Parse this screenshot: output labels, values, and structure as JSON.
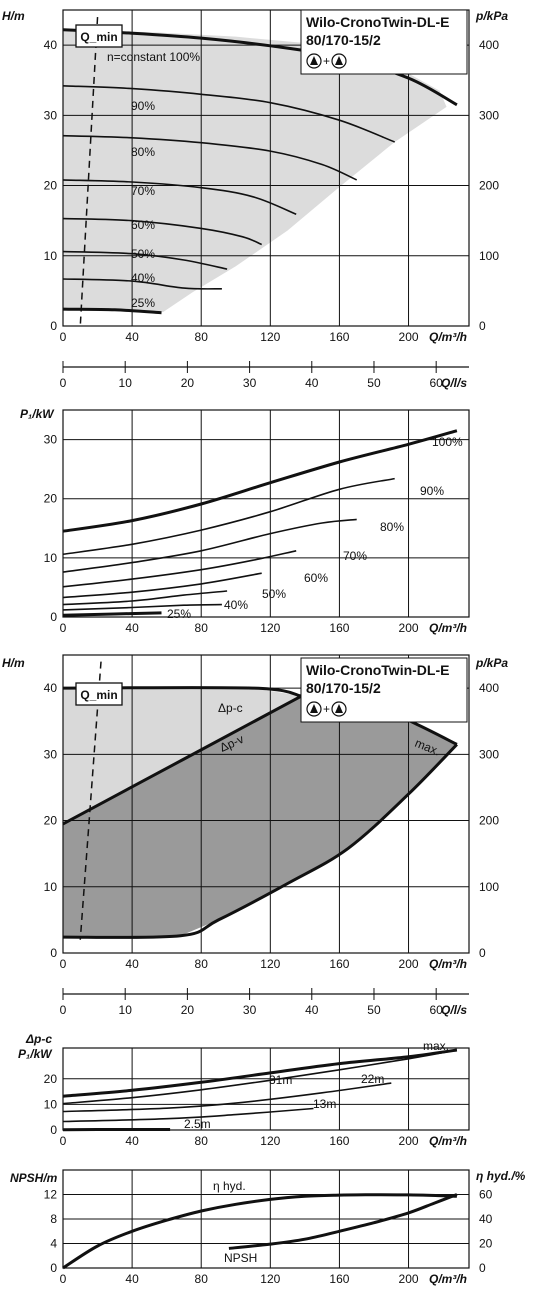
{
  "chart_data": [
    {
      "id": "hq-speed",
      "type": "line",
      "title": "Wilo-CronoTwin-DL-E",
      "subtitle": "80/170-15/2",
      "symbol_note": "+",
      "xlabel": "Q/m³/h",
      "ylabel": "H/m",
      "y2label": "p/kPa",
      "xlim": [
        0,
        235
      ],
      "ylim": [
        0,
        45
      ],
      "x_ticks": [
        0,
        40,
        80,
        120,
        160,
        200
      ],
      "y_ticks": [
        0,
        10,
        20,
        30,
        40
      ],
      "y2_ticks": [
        0,
        100,
        200,
        300,
        400
      ],
      "grid": true,
      "qmin_label": "Q_min",
      "qmin_line": [
        [
          20,
          44
        ],
        [
          10,
          0
        ]
      ],
      "operating_area": [
        [
          58,
          2
        ],
        [
          75,
          4.8
        ],
        [
          100,
          8.5
        ],
        [
          130,
          13.6
        ],
        [
          160,
          19.8
        ],
        [
          192,
          26.2
        ],
        [
          222,
          31.2
        ],
        [
          218,
          33.5
        ],
        [
          185,
          38
        ],
        [
          140,
          40.3
        ],
        [
          100,
          41.2
        ],
        [
          55,
          41.8
        ],
        [
          0,
          42.2
        ],
        [
          0,
          2.2
        ]
      ],
      "series": [
        {
          "name": "n=constant 100%",
          "thick": true,
          "points": [
            [
              0,
              42.2
            ],
            [
              40,
              41.7
            ],
            [
              80,
              41
            ],
            [
              120,
              39.9
            ],
            [
              160,
              38.3
            ],
            [
              200,
              35.3
            ],
            [
              228,
              31.5
            ]
          ]
        },
        {
          "name": "90%",
          "points": [
            [
              0,
              34.2
            ],
            [
              40,
              33.8
            ],
            [
              80,
              33
            ],
            [
              120,
              31.8
            ],
            [
              160,
              29.3
            ],
            [
              192,
              26.2
            ]
          ]
        },
        {
          "name": "80%",
          "points": [
            [
              0,
              27.1
            ],
            [
              40,
              26.8
            ],
            [
              80,
              26.1
            ],
            [
              120,
              24.9
            ],
            [
              150,
              23
            ],
            [
              170,
              20.8
            ]
          ]
        },
        {
          "name": "70%",
          "points": [
            [
              0,
              20.8
            ],
            [
              40,
              20.5
            ],
            [
              80,
              19.7
            ],
            [
              110,
              18.4
            ],
            [
              135,
              15.9
            ]
          ]
        },
        {
          "name": "60%",
          "points": [
            [
              0,
              15.3
            ],
            [
              40,
              15
            ],
            [
              80,
              13.9
            ],
            [
              104,
              12.7
            ],
            [
              115,
              11.6
            ]
          ]
        },
        {
          "name": "50%",
          "points": [
            [
              0,
              10.6
            ],
            [
              40,
              10.3
            ],
            [
              70,
              9.4
            ],
            [
              95,
              8.1
            ]
          ]
        },
        {
          "name": "40%",
          "points": [
            [
              0,
              6.7
            ],
            [
              40,
              6.4
            ],
            [
              70,
              5.4
            ],
            [
              92,
              5.3
            ]
          ]
        },
        {
          "name": "25%",
          "thick": true,
          "points": [
            [
              0,
              2.4
            ],
            [
              30,
              2.3
            ],
            [
              57,
              1.9
            ]
          ]
        }
      ]
    },
    {
      "id": "q-ls-axis",
      "type": "axis",
      "xlabel": "Q/l/s",
      "x_ticks": [
        0,
        10,
        20,
        30,
        40,
        50,
        60
      ]
    },
    {
      "id": "p1-speed",
      "type": "line",
      "ylabel": "P₁/kW",
      "xlabel": "Q/m³/h",
      "xlim": [
        0,
        235
      ],
      "ylim": [
        0,
        35
      ],
      "x_ticks": [
        0,
        40,
        80,
        120,
        160,
        200
      ],
      "y_ticks": [
        0,
        10,
        20,
        30
      ],
      "grid": true,
      "series": [
        {
          "name": "100%",
          "thick": true,
          "points": [
            [
              0,
              14.5
            ],
            [
              40,
              16.3
            ],
            [
              80,
              19.1
            ],
            [
              120,
              22.7
            ],
            [
              160,
              26.2
            ],
            [
              200,
              29.2
            ],
            [
              228,
              31.5
            ]
          ]
        },
        {
          "name": "90%",
          "points": [
            [
              0,
              10.6
            ],
            [
              40,
              12.3
            ],
            [
              80,
              14.7
            ],
            [
              120,
              17.8
            ],
            [
              160,
              21.6
            ],
            [
              192,
              23.4
            ]
          ]
        },
        {
          "name": "80%",
          "points": [
            [
              0,
              7.6
            ],
            [
              40,
              9.2
            ],
            [
              80,
              11.2
            ],
            [
              120,
              14.1
            ],
            [
              150,
              15.9
            ],
            [
              170,
              16.5
            ]
          ]
        },
        {
          "name": "70%",
          "points": [
            [
              0,
              5.1
            ],
            [
              40,
              6.4
            ],
            [
              80,
              8
            ],
            [
              110,
              9.6
            ],
            [
              135,
              11.2
            ]
          ]
        },
        {
          "name": "60%",
          "points": [
            [
              0,
              3.3
            ],
            [
              40,
              4.2
            ],
            [
              80,
              5.6
            ],
            [
              115,
              7.4
            ]
          ]
        },
        {
          "name": "50%",
          "points": [
            [
              0,
              2.1
            ],
            [
              40,
              2.7
            ],
            [
              70,
              3.7
            ],
            [
              95,
              4.4
            ]
          ]
        },
        {
          "name": "40%",
          "points": [
            [
              0,
              1.2
            ],
            [
              40,
              1.6
            ],
            [
              70,
              2
            ],
            [
              92,
              2.1
            ]
          ]
        },
        {
          "name": "25%",
          "thick": true,
          "points": [
            [
              0,
              0.3
            ],
            [
              30,
              0.5
            ],
            [
              57,
              0.7
            ]
          ]
        }
      ]
    },
    {
      "id": "hq-control",
      "type": "area",
      "title": "Wilo-CronoTwin-DL-E",
      "subtitle": "80/170-15/2",
      "symbol_note": "+",
      "xlabel": "Q/m³/h",
      "ylabel": "H/m",
      "y2label": "p/kPa",
      "xlim": [
        0,
        235
      ],
      "ylim": [
        0,
        45
      ],
      "x_ticks": [
        0,
        40,
        80,
        120,
        160,
        200
      ],
      "y_ticks": [
        0,
        10,
        20,
        30,
        40
      ],
      "y2_ticks": [
        0,
        100,
        200,
        300,
        400
      ],
      "grid": true,
      "qmin_label": "Q_min",
      "qmin_line": [
        [
          22,
          44
        ],
        [
          10,
          2
        ]
      ],
      "light_area": [
        [
          0,
          40
        ],
        [
          110,
          40
        ],
        [
          138,
          38.8
        ],
        [
          0,
          19.5
        ]
      ],
      "dark_area": [
        [
          0,
          19.5
        ],
        [
          138,
          38.8
        ],
        [
          180,
          37.3
        ],
        [
          205,
          34.5
        ],
        [
          228,
          31.5
        ],
        [
          200,
          24
        ],
        [
          165,
          15.8
        ],
        [
          130,
          10.5
        ],
        [
          90,
          5
        ],
        [
          68,
          2.6
        ],
        [
          0,
          2.4
        ]
      ],
      "series": [
        {
          "name": "Δp-c",
          "points": [
            [
              0,
              40
            ],
            [
              110,
              40
            ],
            [
              138,
              38.8
            ]
          ]
        },
        {
          "name": "Δp-v",
          "points": [
            [
              0,
              19.5
            ],
            [
              138,
              38.8
            ]
          ]
        },
        {
          "name": "max.",
          "points": [
            [
              138,
              38.8
            ],
            [
              180,
              37.3
            ],
            [
              205,
              34.5
            ],
            [
              228,
              31.5
            ]
          ]
        },
        {
          "name": "",
          "points": [
            [
              228,
              31.5
            ],
            [
              200,
              24
            ],
            [
              165,
              15.8
            ],
            [
              130,
              10.5
            ],
            [
              90,
              5
            ],
            [
              68,
              2.6
            ],
            [
              0,
              2.4
            ]
          ]
        }
      ]
    },
    {
      "id": "q-ls-axis-2",
      "type": "axis",
      "xlabel": "Q/l/s",
      "x_ticks": [
        0,
        10,
        20,
        30,
        40,
        50,
        60
      ]
    },
    {
      "id": "p1-control",
      "type": "line",
      "ylabel_top": "Δp-c",
      "ylabel": "P₁/kW",
      "xlabel": "Q/m³/h",
      "xlim": [
        0,
        235
      ],
      "ylim": [
        0,
        32
      ],
      "x_ticks": [
        0,
        40,
        80,
        120,
        160,
        200
      ],
      "y_ticks": [
        0,
        10,
        20
      ],
      "grid": true,
      "series": [
        {
          "name": "max.",
          "thick": true,
          "points": [
            [
              0,
              13.2
            ],
            [
              40,
              15.5
            ],
            [
              80,
              18.6
            ],
            [
              120,
              22.3
            ],
            [
              160,
              25.9
            ],
            [
              200,
              28.6
            ],
            [
              228,
              31.2
            ]
          ]
        },
        {
          "name": "31m",
          "points": [
            [
              0,
              10.3
            ],
            [
              40,
              12.6
            ],
            [
              80,
              15.7
            ],
            [
              120,
              19.4
            ],
            [
              160,
              23.5
            ],
            [
              200,
              27.8
            ],
            [
              228,
              31.2
            ]
          ]
        },
        {
          "name": "22m",
          "points": [
            [
              0,
              7.2
            ],
            [
              60,
              8.5
            ],
            [
              100,
              10.5
            ],
            [
              150,
              14.5
            ],
            [
              190,
              18.3
            ]
          ]
        },
        {
          "name": "13m",
          "points": [
            [
              0,
              3.3
            ],
            [
              60,
              4.4
            ],
            [
              100,
              6
            ],
            [
              145,
              8.4
            ]
          ]
        },
        {
          "name": "2.5m",
          "thick": true,
          "points": [
            [
              0,
              0.1
            ],
            [
              30,
              0.2
            ],
            [
              62,
              0.2
            ]
          ]
        }
      ]
    },
    {
      "id": "npsh-eff",
      "type": "line",
      "ylabel": "NPSH/m",
      "y2label": "η hyd./%",
      "xlabel": "Q/m³/h",
      "xlim": [
        0,
        235
      ],
      "ylim": [
        0,
        16
      ],
      "y2lim": [
        0,
        80
      ],
      "x_ticks": [
        0,
        40,
        80,
        120,
        160,
        200
      ],
      "y_ticks": [
        0,
        4,
        8,
        12
      ],
      "y2_ticks": [
        0,
        20,
        40,
        60
      ],
      "grid": true,
      "series": [
        {
          "name": "η hyd.",
          "axis": "right",
          "points": [
            [
              0,
              0
            ],
            [
              20,
              18
            ],
            [
              40,
              30
            ],
            [
              60,
              39
            ],
            [
              80,
              46.5
            ],
            [
              100,
              52
            ],
            [
              120,
              56
            ],
            [
              140,
              58.5
            ],
            [
              160,
              59.5
            ],
            [
              180,
              59.8
            ],
            [
              200,
              59.7
            ],
            [
              220,
              59
            ],
            [
              228,
              58.5
            ]
          ]
        },
        {
          "name": "NPSH",
          "axis": "left",
          "points": [
            [
              96,
              3.2
            ],
            [
              120,
              3.9
            ],
            [
              140,
              4.7
            ],
            [
              160,
              6
            ],
            [
              180,
              7.4
            ],
            [
              200,
              9
            ],
            [
              215,
              10.6
            ],
            [
              228,
              12
            ]
          ]
        }
      ]
    }
  ]
}
